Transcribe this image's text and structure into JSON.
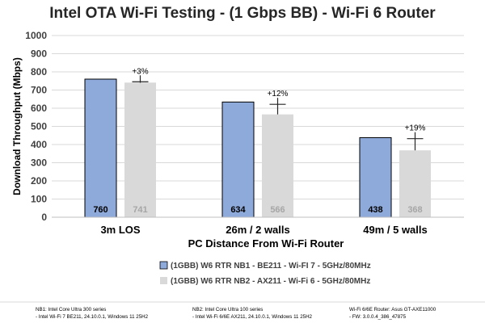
{
  "chart_data": {
    "type": "bar",
    "title": "Intel OTA Wi-Fi Testing - (1 Gbps BB) - Wi-Fi 6 Router",
    "xlabel": "PC Distance From Wi-Fi Router",
    "ylabel": "Download Throughput (Mbps)",
    "ylim": [
      0,
      1000
    ],
    "yticks": [
      0,
      100,
      200,
      300,
      400,
      500,
      600,
      700,
      800,
      900,
      1000
    ],
    "grid": true,
    "legend_position": "bottom",
    "categories": [
      "3m LOS",
      "26m / 2 walls",
      "49m / 5 walls"
    ],
    "series": [
      {
        "name": "(1GBB) W6 RTR NB1 - BE211 - Wi-FI 7 - 5GHz/80MHz",
        "values": [
          760,
          634,
          438
        ],
        "labels": [
          "760",
          "634",
          "438"
        ],
        "color": "#8eaadb",
        "label_color": "#000000"
      },
      {
        "name": "(1GBB) W6 RTR NB2 - AX211 - Wi-Fi 6 - 5GHz/80MHz",
        "values": [
          741,
          566,
          368
        ],
        "labels": [
          "741",
          "566",
          "368"
        ],
        "color": "#d9d9d9",
        "label_color": "#a6a6a6"
      }
    ],
    "annotations": [
      {
        "category": "3m LOS",
        "text": "+3%",
        "error_top": 781,
        "error_bottom": 740
      },
      {
        "category": "26m / 2 walls",
        "text": "+12%",
        "error_top": 657,
        "error_bottom": 566
      },
      {
        "category": "49m / 5 walls",
        "text": "+19%",
        "error_top": 468,
        "error_bottom": 368
      }
    ]
  },
  "footnotes": {
    "nb1": [
      "NB1: Intel Core Ultra 300 series",
      "- Intel Wi-Fi 7 BE211, 24.10.0.1, Windows 11 25H2"
    ],
    "nb2": [
      "NB2: Intel Core Ultra 100 series",
      "- Intel Wi-Fi 6/6E AX211, 24.10.0.1, Windows 11 25H2"
    ],
    "router": [
      "Wi-Fi 6/6E Router: Asus GT-AXE11000",
      "- FW: 3.0.0.4_386_47875"
    ]
  }
}
